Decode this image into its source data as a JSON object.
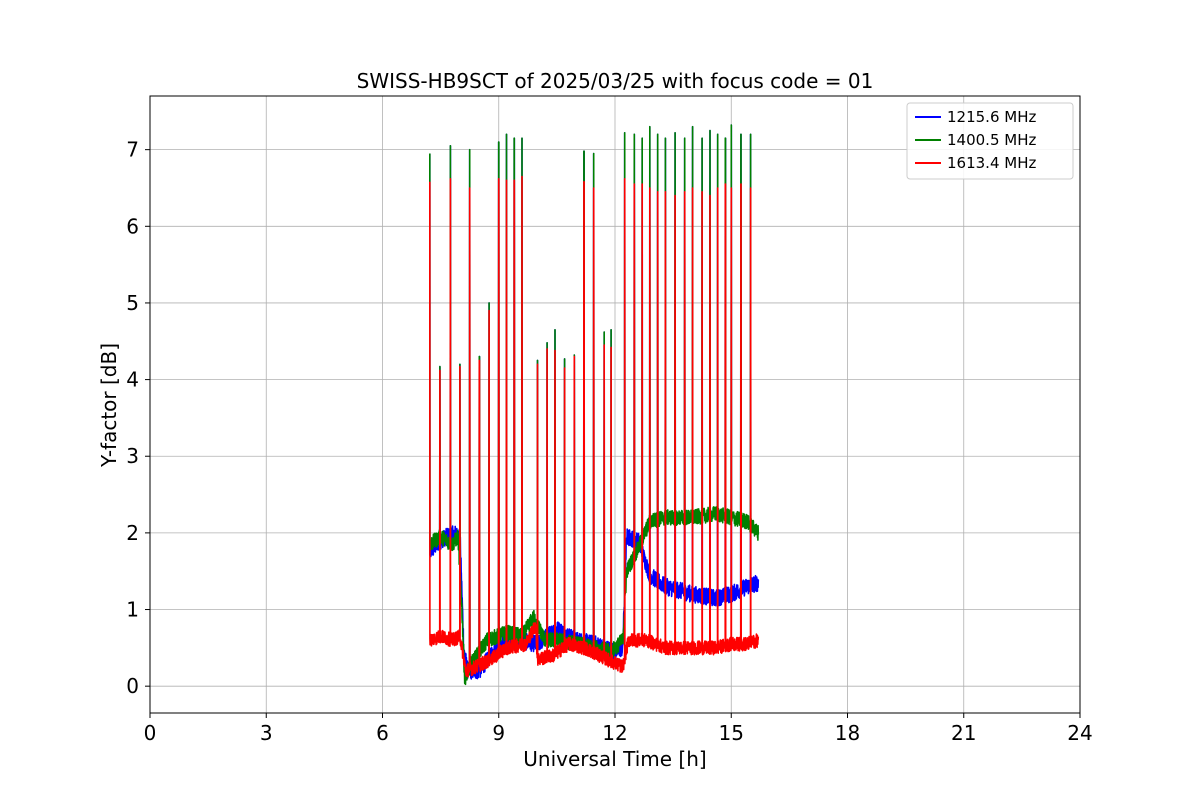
{
  "chart_data": {
    "type": "line",
    "title": "SWISS-HB9SCT of 2025/03/25 with focus code = 01",
    "xlabel": "Universal Time [h]",
    "ylabel": "Y-factor [dB]",
    "xlim": [
      0,
      24
    ],
    "ylim": [
      -0.35,
      7.7
    ],
    "xticks": [
      0,
      3,
      6,
      9,
      12,
      15,
      18,
      21,
      24
    ],
    "yticks": [
      0,
      1,
      2,
      3,
      4,
      5,
      6,
      7
    ],
    "grid": true,
    "legend_position": "top-right",
    "series": [
      {
        "name": "1215.6 MHz",
        "color": "#0000ff",
        "noise": 0.22,
        "x": [
          7.22,
          7.5,
          7.8,
          8.0,
          8.1,
          8.2,
          8.5,
          9.0,
          9.5,
          10.0,
          10.5,
          11.0,
          11.5,
          12.0,
          12.2,
          12.3,
          12.6,
          12.9,
          13.3,
          14.0,
          14.6,
          15.0,
          15.4,
          15.7
        ],
        "y": [
          1.75,
          1.9,
          2.0,
          1.95,
          0.45,
          0.2,
          0.2,
          0.55,
          0.6,
          0.55,
          0.75,
          0.6,
          0.55,
          0.45,
          0.5,
          1.95,
          1.9,
          1.45,
          1.3,
          1.2,
          1.15,
          1.2,
          1.3,
          1.35
        ],
        "spikes": [
          [
            7.22,
            6.95
          ],
          [
            7.48,
            4.17
          ],
          [
            7.75,
            7.05
          ],
          [
            8.0,
            4.2
          ],
          [
            8.25,
            7.0
          ],
          [
            8.5,
            4.3
          ],
          [
            8.75,
            5.0
          ],
          [
            9.0,
            7.1
          ],
          [
            9.2,
            7.2
          ],
          [
            9.4,
            7.15
          ],
          [
            9.6,
            7.15
          ],
          [
            10.0,
            4.25
          ],
          [
            10.25,
            4.48
          ],
          [
            10.45,
            4.65
          ],
          [
            10.7,
            4.27
          ],
          [
            10.95,
            4.32
          ],
          [
            11.2,
            6.98
          ],
          [
            11.45,
            6.95
          ],
          [
            11.72,
            4.62
          ],
          [
            11.9,
            4.65
          ],
          [
            12.25,
            7.22
          ],
          [
            12.5,
            7.2
          ],
          [
            12.7,
            7.15
          ],
          [
            12.9,
            7.3
          ],
          [
            13.1,
            7.2
          ],
          [
            13.3,
            7.15
          ],
          [
            13.55,
            7.22
          ],
          [
            13.8,
            7.15
          ],
          [
            14.0,
            7.3
          ],
          [
            14.25,
            7.15
          ],
          [
            14.45,
            7.25
          ],
          [
            14.65,
            7.2
          ],
          [
            14.85,
            7.15
          ],
          [
            15.0,
            7.32
          ],
          [
            15.25,
            7.2
          ],
          [
            15.5,
            7.2
          ]
        ]
      },
      {
        "name": "1400.5 MHz",
        "color": "#008000",
        "noise": 0.2,
        "x": [
          7.22,
          7.5,
          7.8,
          7.95,
          8.05,
          8.12,
          8.3,
          8.7,
          9.2,
          9.6,
          9.9,
          10.2,
          10.6,
          11.0,
          11.5,
          11.9,
          12.2,
          12.3,
          12.6,
          12.9,
          13.3,
          14.0,
          14.6,
          15.0,
          15.4,
          15.7
        ],
        "y": [
          1.85,
          1.95,
          1.85,
          1.95,
          1.0,
          0.1,
          0.3,
          0.6,
          0.7,
          0.65,
          0.9,
          0.6,
          0.6,
          0.55,
          0.5,
          0.45,
          0.6,
          1.5,
          1.8,
          2.15,
          2.2,
          2.2,
          2.25,
          2.2,
          2.15,
          2.0
        ],
        "spikes": [
          [
            7.22,
            6.95
          ],
          [
            7.48,
            4.17
          ],
          [
            7.75,
            7.05
          ],
          [
            8.0,
            4.2
          ],
          [
            8.25,
            7.0
          ],
          [
            8.5,
            4.3
          ],
          [
            8.75,
            5.0
          ],
          [
            9.0,
            7.1
          ],
          [
            9.2,
            7.2
          ],
          [
            9.4,
            7.15
          ],
          [
            9.6,
            7.15
          ],
          [
            10.0,
            4.25
          ],
          [
            10.25,
            4.48
          ],
          [
            10.45,
            4.65
          ],
          [
            10.7,
            4.27
          ],
          [
            10.95,
            4.32
          ],
          [
            11.2,
            6.98
          ],
          [
            11.45,
            6.95
          ],
          [
            11.72,
            4.62
          ],
          [
            11.9,
            4.65
          ],
          [
            12.25,
            7.22
          ],
          [
            12.5,
            7.2
          ],
          [
            12.7,
            7.15
          ],
          [
            12.9,
            7.3
          ],
          [
            13.1,
            7.2
          ],
          [
            13.3,
            7.15
          ],
          [
            13.55,
            7.22
          ],
          [
            13.8,
            7.15
          ],
          [
            14.0,
            7.3
          ],
          [
            14.25,
            7.15
          ],
          [
            14.45,
            7.25
          ],
          [
            14.65,
            7.2
          ],
          [
            14.85,
            7.15
          ],
          [
            15.0,
            7.32
          ],
          [
            15.25,
            7.2
          ],
          [
            15.5,
            7.2
          ]
        ]
      },
      {
        "name": "1613.4 MHz",
        "color": "#ff0000",
        "noise": 0.18,
        "x": [
          7.22,
          7.5,
          7.8,
          8.0,
          8.15,
          8.4,
          8.8,
          9.2,
          9.7,
          9.95,
          10.0,
          10.4,
          10.8,
          11.2,
          11.6,
          12.0,
          12.2,
          12.35,
          12.8,
          13.3,
          14.0,
          14.6,
          15.0,
          15.4,
          15.7
        ],
        "y": [
          0.6,
          0.65,
          0.6,
          0.65,
          0.2,
          0.25,
          0.35,
          0.5,
          0.55,
          0.8,
          0.35,
          0.4,
          0.55,
          0.5,
          0.4,
          0.3,
          0.25,
          0.6,
          0.6,
          0.5,
          0.5,
          0.5,
          0.55,
          0.55,
          0.6
        ],
        "spikes": [
          [
            7.22,
            6.58
          ],
          [
            7.48,
            4.12
          ],
          [
            7.75,
            6.62
          ],
          [
            8.0,
            4.17
          ],
          [
            8.25,
            6.5
          ],
          [
            8.5,
            4.25
          ],
          [
            8.75,
            4.9
          ],
          [
            9.0,
            6.62
          ],
          [
            9.2,
            6.6
          ],
          [
            9.4,
            6.6
          ],
          [
            9.6,
            6.65
          ],
          [
            10.0,
            4.2
          ],
          [
            10.25,
            4.4
          ],
          [
            10.45,
            4.38
          ],
          [
            10.7,
            4.15
          ],
          [
            10.95,
            4.3
          ],
          [
            11.2,
            6.58
          ],
          [
            11.45,
            6.5
          ],
          [
            11.72,
            4.45
          ],
          [
            11.9,
            4.42
          ],
          [
            12.25,
            6.62
          ],
          [
            12.5,
            6.55
          ],
          [
            12.7,
            6.55
          ],
          [
            12.9,
            6.5
          ],
          [
            13.1,
            6.45
          ],
          [
            13.3,
            6.45
          ],
          [
            13.55,
            6.4
          ],
          [
            13.8,
            6.45
          ],
          [
            14.0,
            6.5
          ],
          [
            14.25,
            6.45
          ],
          [
            14.45,
            6.4
          ],
          [
            14.65,
            6.5
          ],
          [
            14.85,
            6.55
          ],
          [
            15.0,
            6.5
          ],
          [
            15.25,
            6.55
          ],
          [
            15.5,
            6.5
          ]
        ]
      }
    ]
  }
}
